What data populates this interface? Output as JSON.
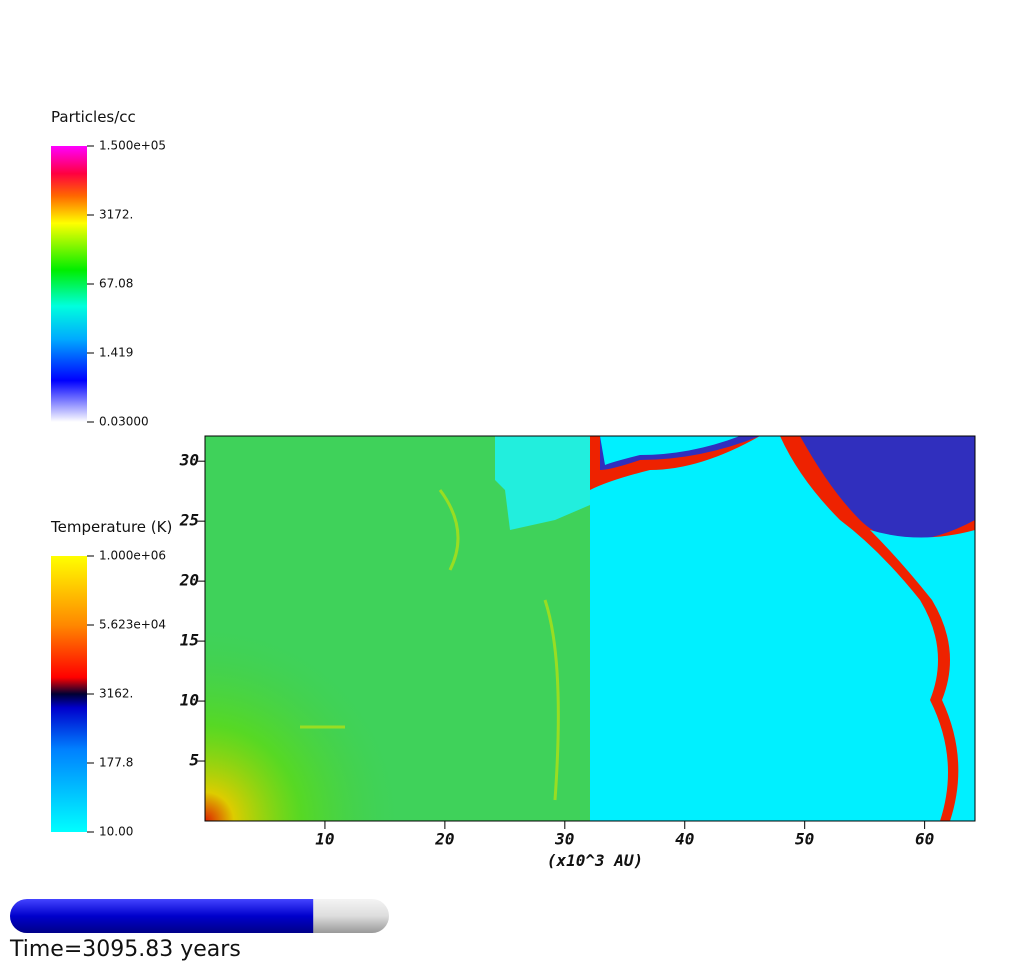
{
  "colorbars": [
    {
      "title": "Particles/cc",
      "labels": [
        "1.500e+05",
        "3172.",
        "67.08",
        "1.419",
        "0.03000"
      ]
    },
    {
      "title": "Temperature (K)",
      "labels": [
        "1.000e+06",
        "5.623e+04",
        "3162.",
        "177.8",
        "10.00"
      ]
    }
  ],
  "plot": {
    "x_label": "(x10^3 AU)",
    "xlim": [
      0,
      64.2
    ],
    "ylim": [
      0,
      32.1
    ],
    "xticks": [
      10,
      20,
      30,
      40,
      50,
      60
    ],
    "yticks": [
      5,
      10,
      15,
      20,
      25,
      30
    ]
  },
  "progress": 0.8,
  "time_label": "Time=3095.83 years"
}
